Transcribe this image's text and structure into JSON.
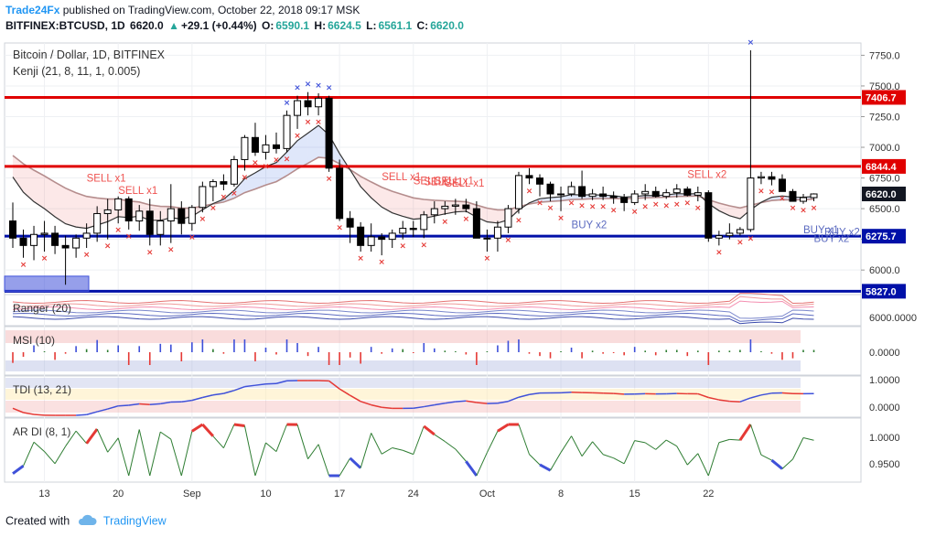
{
  "header": {
    "publisher": "Trade24Fx",
    "published_text": "published on TradingView.com, October 22, 2018 09:17 MSK",
    "symbol": "BITFINEX:BTCUSD, 1D",
    "last": "6620.0",
    "change": "+29.1 (+0.44%)",
    "o_label": "O:",
    "o": "6590.1",
    "h_label": "H:",
    "h": "6624.5",
    "l_label": "L:",
    "l": "6561.1",
    "c_label": "C:",
    "c": "6620.0"
  },
  "legend": {
    "title": "Bitcoin / Dollar, 1D, BITFINEX",
    "indicator": "Kenji (21, 8, 11, 1, 0.005)"
  },
  "footer": {
    "created_with": "Created with",
    "brand": "TradingView"
  },
  "colors": {
    "bull": "#ffffff",
    "bear": "#000000",
    "red_line": "#e00000",
    "blue_line": "#0010a8",
    "x_marker": "#e53935",
    "x_blue": "#3f51d9",
    "label_red": "#ef5350",
    "label_blue": "#5c6bc0"
  },
  "chart_data": [
    {
      "type": "candlestick",
      "title": "Bitcoin / Dollar, 1D, BITFINEX",
      "x_ticks": [
        "13",
        "20",
        "Sep",
        "10",
        "17",
        "24",
        "Oct",
        "8",
        "15",
        "22"
      ],
      "y_ticks": [
        "7750.0",
        "7500.0",
        "7250.0",
        "7000.0",
        "6750.0",
        "6500.0",
        "6250.0",
        "6000.0"
      ],
      "ylim": [
        5800,
        7850
      ],
      "price_labels": [
        {
          "label": "7406.7",
          "value": 7406.7,
          "color": "#e00000"
        },
        {
          "label": "6844.4",
          "value": 6844.4,
          "color": "#e00000"
        },
        {
          "label": "6620.0",
          "value": 6620.0,
          "color": "#131722"
        },
        {
          "label": "6275.7",
          "value": 6275.7,
          "color": "#0010a8"
        },
        {
          "label": "5827.0",
          "value": 5827.0,
          "color": "#0010a8"
        }
      ],
      "horizontal_lines": [
        {
          "value": 7406.7,
          "color": "#e00000"
        },
        {
          "value": 6844.4,
          "color": "#e00000"
        },
        {
          "value": 6275.7,
          "color": "#0010a8"
        },
        {
          "value": 5827.0,
          "color": "#0010a8"
        }
      ],
      "candles": [
        [
          6400,
          6550,
          6180,
          6260
        ],
        [
          6260,
          6330,
          6100,
          6200
        ],
        [
          6200,
          6360,
          6080,
          6290
        ],
        [
          6290,
          6400,
          6150,
          6300
        ],
        [
          6300,
          6360,
          6130,
          6200
        ],
        [
          6200,
          6280,
          5880,
          6180
        ],
        [
          6180,
          6290,
          6100,
          6260
        ],
        [
          6260,
          6380,
          6180,
          6300
        ],
        [
          6300,
          6520,
          6230,
          6460
        ],
        [
          6460,
          6580,
          6250,
          6490
        ],
        [
          6490,
          6600,
          6380,
          6580
        ],
        [
          6580,
          6600,
          6330,
          6400
        ],
        [
          6400,
          6530,
          6320,
          6480
        ],
        [
          6480,
          6580,
          6200,
          6290
        ],
        [
          6290,
          6480,
          6200,
          6400
        ],
        [
          6400,
          6700,
          6220,
          6500
        ],
        [
          6500,
          6560,
          6290,
          6380
        ],
        [
          6380,
          6530,
          6320,
          6510
        ],
        [
          6510,
          6720,
          6470,
          6680
        ],
        [
          6680,
          6740,
          6560,
          6720
        ],
        [
          6720,
          6780,
          6650,
          6700
        ],
        [
          6700,
          6930,
          6680,
          6900
        ],
        [
          6900,
          7100,
          6810,
          7080
        ],
        [
          7080,
          7200,
          6930,
          6960
        ],
        [
          6960,
          7100,
          6900,
          7020
        ],
        [
          7020,
          7120,
          6950,
          6990
        ],
        [
          6990,
          7300,
          6960,
          7260
        ],
        [
          7260,
          7420,
          7150,
          7380
        ],
        [
          7380,
          7450,
          7260,
          7330
        ],
        [
          7330,
          7440,
          7260,
          7400
        ],
        [
          7400,
          7420,
          6800,
          6830
        ],
        [
          6830,
          6900,
          6400,
          6420
        ],
        [
          6420,
          6480,
          6220,
          6350
        ],
        [
          6350,
          6390,
          6150,
          6200
        ],
        [
          6200,
          6380,
          6150,
          6270
        ],
        [
          6270,
          6300,
          6120,
          6250
        ],
        [
          6250,
          6330,
          6180,
          6300
        ],
        [
          6300,
          6400,
          6250,
          6340
        ],
        [
          6340,
          6400,
          6270,
          6330
        ],
        [
          6330,
          6480,
          6260,
          6450
        ],
        [
          6450,
          6560,
          6380,
          6500
        ],
        [
          6500,
          6560,
          6450,
          6520
        ],
        [
          6520,
          6580,
          6450,
          6530
        ],
        [
          6530,
          6580,
          6470,
          6500
        ],
        [
          6500,
          6560,
          6260,
          6260
        ],
        [
          6260,
          6330,
          6150,
          6260
        ],
        [
          6260,
          6400,
          6150,
          6350
        ],
        [
          6350,
          6530,
          6300,
          6500
        ],
        [
          6500,
          6800,
          6460,
          6770
        ],
        [
          6770,
          6830,
          6700,
          6750
        ],
        [
          6750,
          6780,
          6600,
          6700
        ],
        [
          6700,
          6720,
          6560,
          6620
        ],
        [
          6620,
          6680,
          6480,
          6620
        ],
        [
          6620,
          6720,
          6600,
          6680
        ],
        [
          6680,
          6810,
          6580,
          6600
        ],
        [
          6600,
          6660,
          6570,
          6620
        ],
        [
          6620,
          6680,
          6570,
          6600
        ],
        [
          6600,
          6640,
          6540,
          6590
        ],
        [
          6590,
          6620,
          6480,
          6550
        ],
        [
          6550,
          6650,
          6530,
          6620
        ],
        [
          6620,
          6700,
          6570,
          6640
        ],
        [
          6640,
          6680,
          6590,
          6600
        ],
        [
          6600,
          6660,
          6580,
          6630
        ],
        [
          6630,
          6700,
          6590,
          6660
        ],
        [
          6660,
          6680,
          6600,
          6610
        ],
        [
          6610,
          6680,
          6560,
          6630
        ],
        [
          6630,
          6650,
          6230,
          6260
        ],
        [
          6260,
          6320,
          6200,
          6280
        ],
        [
          6280,
          6380,
          6250,
          6300
        ],
        [
          6300,
          6350,
          6280,
          6330
        ],
        [
          6330,
          7790,
          6310,
          6750
        ],
        [
          6750,
          6800,
          6700,
          6760
        ],
        [
          6760,
          6800,
          6690,
          6740
        ],
        [
          6740,
          6780,
          6640,
          6640
        ],
        [
          6640,
          6660,
          6560,
          6560
        ],
        [
          6560,
          6620,
          6540,
          6590
        ],
        [
          6590,
          6625,
          6561,
          6620
        ]
      ],
      "annotations": [
        {
          "text": "SELL x1",
          "color": "#ef5350"
        },
        {
          "text": "SELL x1",
          "color": "#ef5350"
        },
        {
          "text": "SELL x1",
          "color": "#ef5350"
        },
        {
          "text": "SELL x1",
          "color": "#ef5350"
        },
        {
          "text": "SELL x1",
          "color": "#ef5350"
        },
        {
          "text": "SELL x1",
          "color": "#ef5350"
        },
        {
          "text": "SELL x1",
          "color": "#ef5350"
        },
        {
          "text": "SELL x2",
          "color": "#ef5350"
        },
        {
          "text": "BUY x2",
          "color": "#5c6bc0"
        },
        {
          "text": "BUY x1",
          "color": "#5c6bc0"
        },
        {
          "text": "BUY x2",
          "color": "#5c6bc0"
        },
        {
          "text": "BUY x2",
          "color": "#5c6bc0"
        }
      ]
    },
    {
      "type": "line",
      "title": "Ranger (20)",
      "y_ticks": [
        "6000.0000"
      ]
    },
    {
      "type": "bar",
      "title": "MSI (10)",
      "y_ticks": [
        "0.0000"
      ]
    },
    {
      "type": "line",
      "title": "TDI (13, 21)",
      "y_ticks": [
        "1.0000",
        "0.0000"
      ]
    },
    {
      "type": "line",
      "title": "AR DI (8, 1)",
      "y_ticks": [
        "1.0000",
        "0.9500"
      ]
    }
  ]
}
